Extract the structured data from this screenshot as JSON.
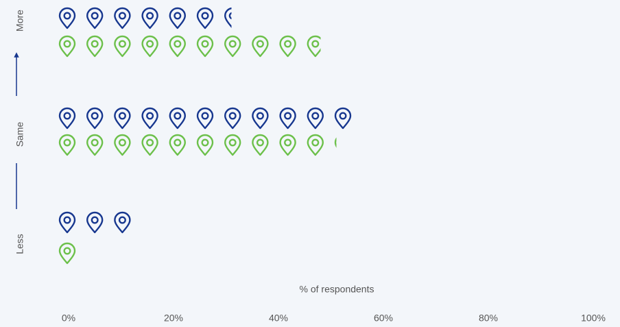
{
  "chart_data": {
    "type": "pictogram",
    "categories": [
      "More",
      "Same",
      "Less"
    ],
    "series": [
      {
        "color": "#17378f",
        "values": [
          33,
          56,
          14
        ]
      },
      {
        "color": "#6cc04a",
        "values": [
          50,
          53,
          3.5
        ]
      }
    ],
    "xlabel": "% of respondents",
    "xlim": [
      0,
      100
    ],
    "xticks": [
      {
        "value": 0,
        "label": "0%"
      },
      {
        "value": 20,
        "label": "20%"
      },
      {
        "value": 40,
        "label": "40%"
      },
      {
        "value": 60,
        "label": "60%"
      },
      {
        "value": 80,
        "label": "80%"
      },
      {
        "value": 100,
        "label": "100%"
      }
    ]
  }
}
